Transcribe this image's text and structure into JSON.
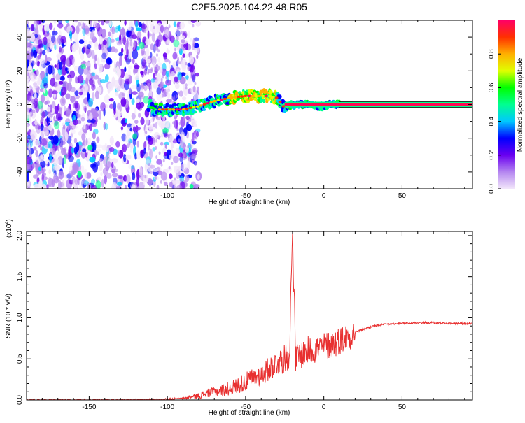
{
  "title": "C2E5.2025.104.22.48.R05",
  "chart_data": [
    {
      "type": "heatmap",
      "xlabel": "Height of straight line (km)",
      "ylabel": "Frequency (Hz)",
      "xlim": [
        -190,
        95
      ],
      "ylim": [
        -50,
        50
      ],
      "x_ticks": [
        -150,
        -100,
        -50,
        0,
        50
      ],
      "y_ticks": [
        -40,
        -20,
        0,
        20,
        40
      ],
      "colorbar": {
        "label": "Normalized spectral amplitude",
        "range": [
          0.0,
          1.0
        ],
        "ticks": [
          0.0,
          0.2,
          0.4,
          0.6,
          0.8
        ],
        "colors": [
          "#f2e6fa",
          "#b485f0",
          "#6a00f0",
          "#0000ff",
          "#00c8ff",
          "#00ff90",
          "#00ff00",
          "#e0ff00",
          "#ffb000",
          "#ff3000",
          "#ff0066"
        ]
      },
      "ridge": {
        "x": [
          -110,
          -100,
          -90,
          -80,
          -70,
          -60,
          -50,
          -45,
          -40,
          -35,
          -30,
          -25,
          -20,
          -15,
          -10,
          -5,
          0,
          5,
          10,
          95
        ],
        "y": [
          -3,
          -3,
          -3,
          -1,
          2,
          4,
          5,
          5,
          5,
          5,
          4,
          -2,
          0,
          0,
          0,
          -1,
          -1,
          0,
          0,
          0
        ]
      }
    },
    {
      "type": "line",
      "xlabel": "Height of straight line (km)",
      "ylabel": "SNR (10 * v/v)",
      "y_multiplier": "(x10",
      "y_multiplier_exp": "4",
      "xlim": [
        -190,
        95
      ],
      "ylim": [
        0,
        2.05
      ],
      "x_ticks": [
        -150,
        -100,
        -50,
        0,
        50
      ],
      "y_ticks": [
        0.0,
        0.5,
        1.0,
        1.5,
        2.0
      ],
      "line_color": "#e83030",
      "series": [
        {
          "x": [
            -190,
            -150,
            -120,
            -100,
            -90,
            -80,
            -75,
            -70,
            -65,
            -60,
            -55,
            -50,
            -45,
            -40,
            -35,
            -30,
            -25,
            -22,
            -20,
            -18,
            -15,
            -10,
            -5,
            0,
            5,
            10,
            15,
            20,
            25,
            30,
            35,
            40,
            50,
            60,
            70,
            80,
            95
          ],
          "y": [
            0.0,
            0.0,
            0.0,
            0.01,
            0.02,
            0.05,
            0.08,
            0.1,
            0.12,
            0.14,
            0.18,
            0.22,
            0.27,
            0.3,
            0.38,
            0.45,
            0.5,
            0.55,
            2.05,
            0.5,
            0.55,
            0.6,
            0.62,
            0.65,
            0.68,
            0.72,
            0.77,
            0.82,
            0.86,
            0.89,
            0.91,
            0.92,
            0.93,
            0.94,
            0.94,
            0.93,
            0.93
          ]
        }
      ]
    }
  ]
}
